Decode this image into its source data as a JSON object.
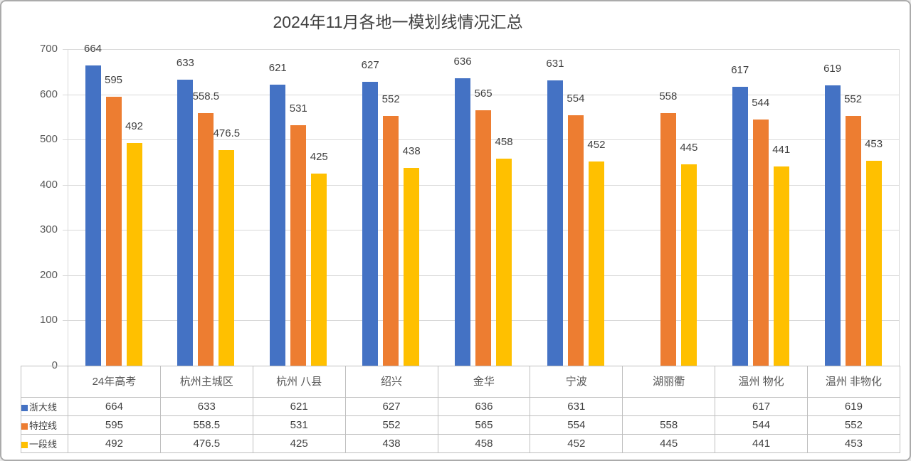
{
  "window": {
    "background": "#ffffff",
    "border_color": "#ababab"
  },
  "chart_data": {
    "type": "bar",
    "title": "2024年11月各地一模划线情况汇总",
    "categories": [
      "24年高考",
      "杭州主城区",
      "杭州\n八县",
      "绍兴",
      "金华",
      "宁波",
      "湖丽衢",
      "温州\n物化",
      "温州\n非物化"
    ],
    "series": [
      {
        "name": "浙大线",
        "color": "#4472C4",
        "values": [
          664,
          633,
          621,
          627,
          636,
          631,
          null,
          617,
          619
        ]
      },
      {
        "name": "特控线",
        "color": "#ED7D31",
        "values": [
          595,
          558.5,
          531,
          552,
          565,
          554,
          558,
          544,
          552
        ]
      },
      {
        "name": "一段线",
        "color": "#FFC000",
        "values": [
          492,
          476.5,
          425,
          438,
          458,
          452,
          445,
          441,
          453
        ]
      }
    ],
    "y_axis": {
      "min": 0,
      "max": 700,
      "step": 100,
      "ticks": [
        0,
        100,
        200,
        300,
        400,
        500,
        600,
        700
      ]
    },
    "grid": true,
    "data_labels": true,
    "legend_position": "data-table-left",
    "data_table": true,
    "colors": {
      "gridline": "#d9d9d9",
      "table_border": "#bfbfbf",
      "label_text": "#404040",
      "tick_text": "#595959"
    }
  }
}
